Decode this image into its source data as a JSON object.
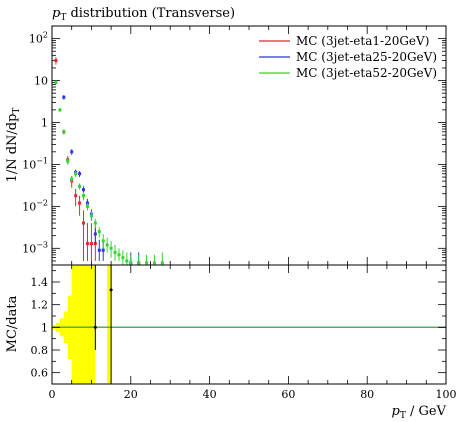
{
  "chart_data": {
    "type": "scatter",
    "title": "pT distribution (Transverse)",
    "title_parts": {
      "symbol": "p",
      "sub": "T",
      "rest": " distribution (Transverse)"
    },
    "ylabel_parts": {
      "lead": "1/N dN/dp",
      "sub": "T"
    },
    "xlabel_parts": {
      "symbol": "p",
      "sub": "T",
      "rest": " / GeV"
    },
    "ratio_ylabel": "MC/data",
    "xlim": [
      0,
      100
    ],
    "ylim": [
      0.0004,
      200
    ],
    "yscale": "log",
    "ratio_ylim": [
      0.5,
      1.55
    ],
    "x_ticks": [
      "0",
      "20",
      "40",
      "60",
      "80",
      "100"
    ],
    "y_ticks": [
      {
        "mant": "10",
        "exp": "2",
        "value": 100
      },
      {
        "mant": "10",
        "exp": "",
        "value": 10
      },
      {
        "mant": "1",
        "exp": "",
        "value": 1
      },
      {
        "mant": "10",
        "exp": "−1",
        "value": 0.1
      },
      {
        "mant": "10",
        "exp": "−2",
        "value": 0.01
      },
      {
        "mant": "10",
        "exp": "−3",
        "value": 0.001
      }
    ],
    "ratio_y_ticks": [
      "1.4",
      "1.2",
      "1",
      "0.8",
      "0.6"
    ],
    "legend_position": "top-right",
    "series": [
      {
        "name": "MC (3jet-eta1-20GeV)",
        "color": "#e8262b",
        "points": [
          {
            "x": 1,
            "y": 30,
            "lo": 24,
            "hi": 36
          },
          {
            "x": 3,
            "y": 0.6,
            "lo": 0.52,
            "hi": 0.68
          },
          {
            "x": 4,
            "y": 0.13,
            "lo": 0.1,
            "hi": 0.16
          },
          {
            "x": 5,
            "y": 0.04,
            "lo": 0.028,
            "hi": 0.052
          },
          {
            "x": 6,
            "y": 0.018,
            "lo": 0.01,
            "hi": 0.026
          },
          {
            "x": 7,
            "y": 0.012,
            "lo": 0.006,
            "hi": 0.018
          },
          {
            "x": 8,
            "y": 0.004,
            "lo": 0.0005,
            "hi": 0.008
          },
          {
            "x": 9,
            "y": 0.0013,
            "lo": 0.0005,
            "hi": 0.004
          },
          {
            "x": 10,
            "y": 0.0013,
            "lo": 0.0005,
            "hi": 0.004
          },
          {
            "x": 11,
            "y": 0.0013,
            "lo": 0.0005,
            "hi": 0.003
          }
        ]
      },
      {
        "name": "MC (3jet-eta25-20GeV)",
        "color": "#2b35e6",
        "points": [
          {
            "x": 3,
            "y": 4,
            "lo": 3.5,
            "hi": 4.5
          },
          {
            "x": 5,
            "y": 0.2,
            "lo": 0.17,
            "hi": 0.23
          },
          {
            "x": 6,
            "y": 0.065,
            "lo": 0.055,
            "hi": 0.075
          },
          {
            "x": 7,
            "y": 0.06,
            "lo": 0.05,
            "hi": 0.07
          },
          {
            "x": 8,
            "y": 0.025,
            "lo": 0.02,
            "hi": 0.03
          },
          {
            "x": 9,
            "y": 0.012,
            "lo": 0.009,
            "hi": 0.015
          },
          {
            "x": 10,
            "y": 0.0065,
            "lo": 0.0045,
            "hi": 0.0085
          },
          {
            "x": 11,
            "y": 0.0022,
            "lo": 0.0012,
            "hi": 0.0035
          },
          {
            "x": 12,
            "y": 0.0009,
            "lo": 0.0005,
            "hi": 0.0016
          },
          {
            "x": 13,
            "y": 0.0009,
            "lo": 0.0005,
            "hi": 0.0015
          },
          {
            "x": 20,
            "y": 0.00045,
            "lo": 0.0004,
            "hi": 0.0008
          },
          {
            "x": 22,
            "y": 0.00045,
            "lo": 0.0004,
            "hi": 0.0008
          }
        ]
      },
      {
        "name": "MC (3jet-eta52-20GeV)",
        "color": "#33d62f",
        "points": [
          {
            "x": 1,
            "y": 9,
            "lo": 8,
            "hi": 10
          },
          {
            "x": 2,
            "y": 2,
            "lo": 1.8,
            "hi": 2.2
          },
          {
            "x": 3,
            "y": 0.6,
            "lo": 0.52,
            "hi": 0.68
          },
          {
            "x": 4,
            "y": 0.12,
            "lo": 0.1,
            "hi": 0.14
          },
          {
            "x": 5,
            "y": 0.045,
            "lo": 0.037,
            "hi": 0.053
          },
          {
            "x": 6,
            "y": 0.06,
            "lo": 0.05,
            "hi": 0.07
          },
          {
            "x": 7,
            "y": 0.03,
            "lo": 0.025,
            "hi": 0.035
          },
          {
            "x": 8,
            "y": 0.018,
            "lo": 0.014,
            "hi": 0.022
          },
          {
            "x": 9,
            "y": 0.01,
            "lo": 0.008,
            "hi": 0.012
          },
          {
            "x": 10,
            "y": 0.006,
            "lo": 0.0045,
            "hi": 0.0075
          },
          {
            "x": 11,
            "y": 0.004,
            "lo": 0.003,
            "hi": 0.005
          },
          {
            "x": 12,
            "y": 0.0025,
            "lo": 0.0018,
            "hi": 0.0032
          },
          {
            "x": 13,
            "y": 0.0015,
            "lo": 0.001,
            "hi": 0.0022
          },
          {
            "x": 14,
            "y": 0.0012,
            "lo": 0.0008,
            "hi": 0.0018
          },
          {
            "x": 15,
            "y": 0.001,
            "lo": 0.0006,
            "hi": 0.0015
          },
          {
            "x": 16,
            "y": 0.0008,
            "lo": 0.0005,
            "hi": 0.0012
          },
          {
            "x": 17,
            "y": 0.0007,
            "lo": 0.0005,
            "hi": 0.001
          },
          {
            "x": 18,
            "y": 0.0006,
            "lo": 0.0004,
            "hi": 0.0009
          },
          {
            "x": 19,
            "y": 0.0005,
            "lo": 0.0004,
            "hi": 0.0008
          },
          {
            "x": 20,
            "y": 0.00045,
            "lo": 0.0004,
            "hi": 0.0007
          },
          {
            "x": 22,
            "y": 0.00045,
            "lo": 0.0004,
            "hi": 0.0007
          },
          {
            "x": 24,
            "y": 0.00045,
            "lo": 0.0004,
            "hi": 0.0007
          },
          {
            "x": 26,
            "y": 0.00045,
            "lo": 0.0004,
            "hi": 0.0007
          },
          {
            "x": 28,
            "y": 0.00045,
            "lo": 0.0004,
            "hi": 0.0008
          }
        ]
      }
    ],
    "ratio_band": {
      "color": "#ffff00",
      "bins": [
        {
          "x0": 0,
          "x1": 1,
          "lo": 0.98,
          "hi": 1.02
        },
        {
          "x0": 1,
          "x1": 2,
          "lo": 0.96,
          "hi": 1.04
        },
        {
          "x0": 2,
          "x1": 3,
          "lo": 0.92,
          "hi": 1.08
        },
        {
          "x0": 3,
          "x1": 4,
          "lo": 0.86,
          "hi": 1.14
        },
        {
          "x0": 4,
          "x1": 5,
          "lo": 0.72,
          "hi": 1.28
        },
        {
          "x0": 5,
          "x1": 6,
          "lo": 0.5,
          "hi": 1.55
        },
        {
          "x0": 6,
          "x1": 7,
          "lo": 0.5,
          "hi": 1.55
        },
        {
          "x0": 7,
          "x1": 8,
          "lo": 0.5,
          "hi": 1.55
        },
        {
          "x0": 8,
          "x1": 9,
          "lo": 0.5,
          "hi": 1.55
        },
        {
          "x0": 9,
          "x1": 10,
          "lo": 0.5,
          "hi": 1.55
        },
        {
          "x0": 10,
          "x1": 11,
          "lo": 0.5,
          "hi": 1.55
        },
        {
          "x0": 14,
          "x1": 15,
          "lo": 0.5,
          "hi": 1.55
        }
      ]
    },
    "ratio_lines": [
      {
        "color": "#e8262b",
        "value": 1
      },
      {
        "color": "#2b35e6",
        "value": 1
      },
      {
        "color": "#33d62f",
        "value": 1
      }
    ],
    "data_points": [
      {
        "x": 11,
        "y": 1.0,
        "lo": 0.8,
        "hi": 1.55
      },
      {
        "x": 15,
        "y": 1.33,
        "lo": 0.5,
        "hi": 1.55
      }
    ]
  }
}
